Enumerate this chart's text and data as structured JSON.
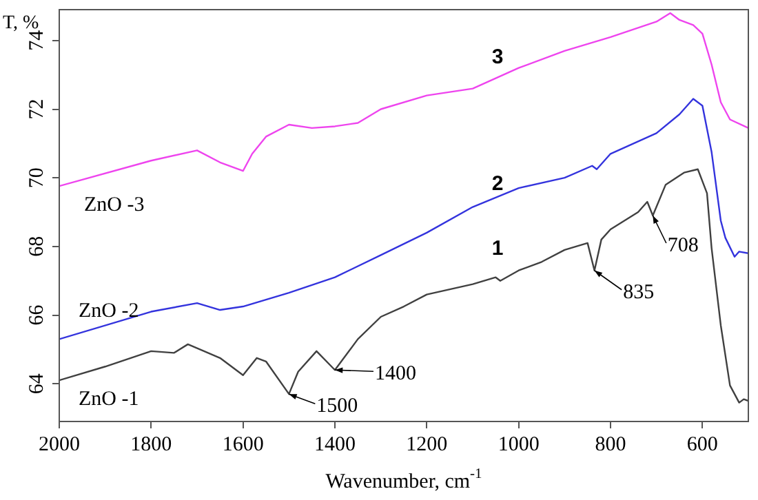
{
  "chart_data": {
    "type": "line",
    "xlabel": "Wavenumber, cm$^{-1}$",
    "ylabel": "T, %",
    "xlim": [
      2000,
      500
    ],
    "xticks": [
      2000,
      1800,
      1600,
      1400,
      1200,
      1000,
      800,
      600
    ],
    "ylim": [
      62.9,
      74.9
    ],
    "yticks": [
      64,
      66,
      68,
      70,
      72,
      74
    ],
    "grid": false,
    "legend": false,
    "marker": "none",
    "line_style": "solid",
    "series": [
      {
        "name": "ZnO -1",
        "color": "#404040",
        "x": [
          2000,
          1900,
          1800,
          1750,
          1720,
          1650,
          1600,
          1570,
          1550,
          1500,
          1480,
          1440,
          1400,
          1350,
          1300,
          1250,
          1200,
          1100,
          1050,
          1040,
          1000,
          950,
          900,
          850,
          835,
          820,
          800,
          740,
          720,
          708,
          680,
          640,
          610,
          590,
          580,
          560,
          540,
          520,
          510,
          500
        ],
        "values": [
          64.1,
          64.5,
          64.95,
          64.9,
          65.15,
          64.75,
          64.25,
          64.75,
          64.65,
          63.7,
          64.35,
          64.95,
          64.4,
          65.3,
          65.95,
          66.25,
          66.6,
          66.9,
          67.1,
          67.0,
          67.3,
          67.55,
          67.9,
          68.1,
          67.3,
          68.2,
          68.5,
          69.0,
          69.3,
          68.9,
          69.8,
          70.15,
          70.25,
          69.55,
          67.95,
          65.7,
          63.95,
          63.45,
          63.55,
          63.5
        ]
      },
      {
        "name": "ZnO -2",
        "color": "#3333dd",
        "x": [
          2000,
          1800,
          1700,
          1650,
          1600,
          1500,
          1400,
          1300,
          1200,
          1100,
          1000,
          900,
          840,
          830,
          800,
          700,
          650,
          620,
          600,
          580,
          560,
          550,
          530,
          520,
          500
        ],
        "values": [
          65.3,
          66.1,
          66.35,
          66.15,
          66.25,
          66.65,
          67.1,
          67.75,
          68.4,
          69.15,
          69.7,
          70.0,
          70.35,
          70.25,
          70.7,
          71.3,
          71.85,
          72.3,
          72.1,
          70.75,
          68.75,
          68.25,
          67.7,
          67.85,
          67.8
        ]
      },
      {
        "name": "ZnO -3",
        "color": "#ee44ee",
        "x": [
          2000,
          1800,
          1700,
          1650,
          1600,
          1580,
          1550,
          1500,
          1450,
          1400,
          1350,
          1300,
          1200,
          1100,
          1000,
          900,
          800,
          700,
          670,
          650,
          620,
          600,
          580,
          560,
          540,
          500
        ],
        "values": [
          69.76,
          70.5,
          70.8,
          70.45,
          70.2,
          70.7,
          71.2,
          71.55,
          71.45,
          71.5,
          71.6,
          72.0,
          72.4,
          72.6,
          73.2,
          73.7,
          74.1,
          74.55,
          74.8,
          74.6,
          74.45,
          74.2,
          73.3,
          72.2,
          71.7,
          71.45
        ]
      }
    ],
    "annotations": [
      "1",
      "2",
      "3",
      {
        "text": "1500",
        "x": 1500,
        "y": 63.7
      },
      {
        "text": "1400",
        "x": 1400,
        "y": 64.4
      },
      {
        "text": "835",
        "x": 835,
        "y": 67.3
      },
      {
        "text": "708",
        "x": 708,
        "y": 68.9
      }
    ]
  }
}
